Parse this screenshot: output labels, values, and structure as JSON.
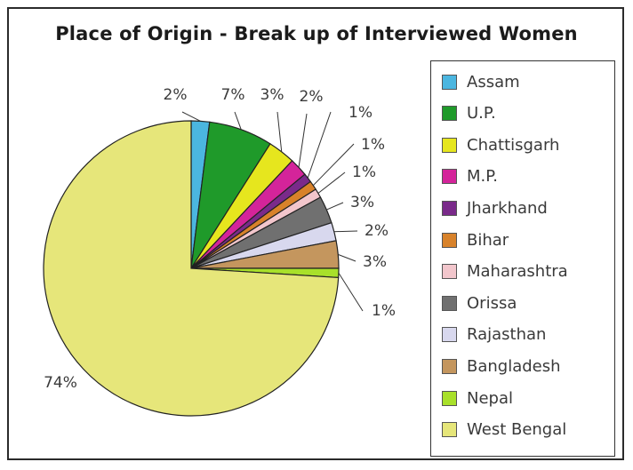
{
  "chart_data": {
    "type": "pie",
    "title": "Place of Origin - Break up of Interviewed Women",
    "slices": [
      {
        "name": "Assam",
        "value": 2,
        "label": "2%",
        "color": "#4bb6e0"
      },
      {
        "name": "U.P.",
        "value": 7,
        "label": "7%",
        "color": "#1f9a2a"
      },
      {
        "name": "Chattisgarh",
        "value": 3,
        "label": "3%",
        "color": "#e6e61e"
      },
      {
        "name": "M.P.",
        "value": 2,
        "label": "2%",
        "color": "#d4249a"
      },
      {
        "name": "Jharkhand",
        "value": 1,
        "label": "1%",
        "color": "#7a2a8a"
      },
      {
        "name": "Bihar",
        "value": 1,
        "label": "1%",
        "color": "#d8822a"
      },
      {
        "name": "Maharashtra",
        "value": 1,
        "label": "1%",
        "color": "#f2c6cc"
      },
      {
        "name": "Orissa",
        "value": 3,
        "label": "3%",
        "color": "#707070"
      },
      {
        "name": "Rajasthan",
        "value": 2,
        "label": "2%",
        "color": "#d8d8ee"
      },
      {
        "name": "Bangladesh",
        "value": 3,
        "label": "3%",
        "color": "#c4965e"
      },
      {
        "name": "Nepal",
        "value": 1,
        "label": "1%",
        "color": "#a8e02a"
      },
      {
        "name": "West Bengal",
        "value": 74,
        "label": "74%",
        "color": "#e6e67a"
      }
    ],
    "legend_position": "right"
  }
}
